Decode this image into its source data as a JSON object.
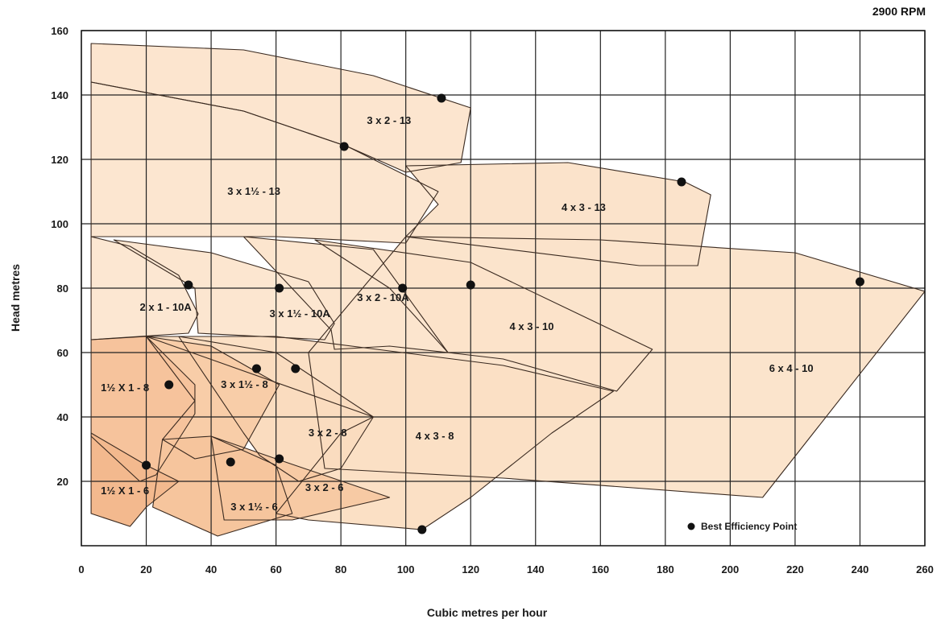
{
  "speed_label": "2900 RPM",
  "chart_data": {
    "type": "area",
    "title": "",
    "xlabel": "Cubic metres per hour",
    "ylabel": "Head metres",
    "xlim": [
      0,
      260
    ],
    "ylim": [
      0,
      160
    ],
    "xticks": [
      0,
      20,
      40,
      60,
      80,
      100,
      120,
      140,
      160,
      180,
      200,
      220,
      240,
      260
    ],
    "yticks": [
      20,
      40,
      60,
      80,
      100,
      120,
      140,
      160
    ],
    "grid": true,
    "legend": {
      "label": "Best Efficiency Point",
      "position": "bottom-right"
    },
    "zones": [
      {
        "name": "6 x 4 - 10",
        "label_at": [
          212,
          54
        ],
        "fill": "#fbe4cc",
        "polygon": [
          [
            100,
            96
          ],
          [
            160,
            95
          ],
          [
            220,
            91
          ],
          [
            260,
            79
          ],
          [
            210,
            15
          ],
          [
            130,
            21
          ],
          [
            75,
            24
          ],
          [
            70,
            60
          ],
          [
            100,
            96
          ]
        ],
        "bep": [
          240,
          82
        ]
      },
      {
        "name": "4 x 3 - 13",
        "label_at": [
          148,
          104
        ],
        "fill": "#fbe3cb",
        "polygon": [
          [
            100,
            118
          ],
          [
            150,
            119
          ],
          [
            186,
            113
          ],
          [
            194,
            109
          ],
          [
            190,
            87
          ],
          [
            172,
            87
          ],
          [
            100,
            96
          ],
          [
            110,
            106
          ],
          [
            100,
            118
          ]
        ],
        "bep": [
          185,
          113
        ]
      },
      {
        "name": "3 x 2 - 13",
        "label_at": [
          88,
          131
        ],
        "fill": "#fce5cf",
        "polygon": [
          [
            3,
            156
          ],
          [
            50,
            154
          ],
          [
            90,
            146
          ],
          [
            120,
            136
          ],
          [
            117,
            119
          ],
          [
            100,
            116
          ],
          [
            82,
            124
          ],
          [
            50,
            135
          ],
          [
            3,
            144
          ]
        ],
        "bep": [
          111,
          139
        ]
      },
      {
        "name": "3 x 1½ - 13",
        "label_at": [
          45,
          109
        ],
        "fill": "#fce6d0",
        "polygon": [
          [
            3,
            144
          ],
          [
            50,
            135
          ],
          [
            82,
            124
          ],
          [
            110,
            110
          ],
          [
            100,
            94
          ],
          [
            60,
            96
          ],
          [
            3,
            96
          ]
        ],
        "bep": [
          81,
          124
        ]
      },
      {
        "name": "4 x 3 - 10",
        "label_at": [
          132,
          67
        ],
        "fill": "#fce3ca",
        "polygon": [
          [
            72,
            95
          ],
          [
            120,
            88
          ],
          [
            176,
            61
          ],
          [
            165,
            48
          ],
          [
            130,
            58
          ],
          [
            113,
            60
          ],
          [
            95,
            80
          ],
          [
            72,
            95
          ]
        ],
        "bep": [
          120,
          81
        ]
      },
      {
        "name": "3 x 2 - 10A",
        "label_at": [
          85,
          76
        ],
        "fill": "#fce5ce",
        "polygon": [
          [
            50,
            96
          ],
          [
            90,
            92
          ],
          [
            113,
            60
          ],
          [
            95,
            62
          ],
          [
            78,
            61
          ],
          [
            77,
            67
          ],
          [
            50,
            96
          ]
        ],
        "bep": [
          99,
          80
        ]
      },
      {
        "name": "3 x 1½ - 10A",
        "label_at": [
          58,
          71
        ],
        "fill": "#fce6d0",
        "polygon": [
          [
            10,
            95
          ],
          [
            40,
            91
          ],
          [
            70,
            82
          ],
          [
            78,
            69
          ],
          [
            75,
            64
          ],
          [
            36,
            66
          ],
          [
            35,
            80
          ],
          [
            10,
            95
          ]
        ],
        "bep": [
          61,
          80
        ]
      },
      {
        "name": "2 x 1 - 10A",
        "label_at": [
          18,
          73
        ],
        "fill": "#fce7d2",
        "polygon": [
          [
            3,
            96
          ],
          [
            15,
            93
          ],
          [
            30,
            84
          ],
          [
            36,
            72
          ],
          [
            33,
            66
          ],
          [
            3,
            64
          ]
        ],
        "bep": [
          33,
          81
        ]
      },
      {
        "name": "4 x 3 - 8",
        "label_at": [
          103,
          33
        ],
        "fill": "#fbe0c5",
        "polygon": [
          [
            20,
            65
          ],
          [
            60,
            65
          ],
          [
            130,
            56
          ],
          [
            164,
            48
          ],
          [
            145,
            35
          ],
          [
            120,
            15
          ],
          [
            105,
            5
          ],
          [
            70,
            8
          ],
          [
            60,
            10
          ],
          [
            80,
            35
          ],
          [
            90,
            40
          ],
          [
            20,
            65
          ]
        ],
        "bep": [
          105,
          5
        ]
      },
      {
        "name": "3 x 2 - 8",
        "label_at": [
          70,
          34
        ],
        "fill": "#fadcbf",
        "polygon": [
          [
            30,
            65
          ],
          [
            60,
            60
          ],
          [
            90,
            40
          ],
          [
            80,
            24
          ],
          [
            67,
            20
          ],
          [
            55,
            28
          ],
          [
            50,
            35
          ],
          [
            30,
            65
          ]
        ],
        "bep": [
          66,
          55
        ]
      },
      {
        "name": "3 x 1½ - 8",
        "label_at": [
          43,
          49
        ],
        "fill": "#f8cda8",
        "polygon": [
          [
            20,
            65
          ],
          [
            40,
            62
          ],
          [
            61,
            50
          ],
          [
            50,
            30
          ],
          [
            35,
            27
          ],
          [
            25,
            33
          ],
          [
            35,
            45
          ],
          [
            20,
            65
          ]
        ],
        "bep": [
          54,
          55
        ]
      },
      {
        "name": "1½ X 1 - 8",
        "label_at": [
          6,
          48
        ],
        "fill": "#f6c39c",
        "polygon": [
          [
            3,
            64
          ],
          [
            20,
            65
          ],
          [
            35,
            50
          ],
          [
            35,
            41
          ],
          [
            23,
            22
          ],
          [
            18,
            20
          ],
          [
            3,
            34
          ]
        ],
        "bep": [
          27,
          50
        ]
      },
      {
        "name": "3 x 2 - 6",
        "label_at": [
          69,
          17
        ],
        "fill": "#f7caa4",
        "polygon": [
          [
            40,
            34
          ],
          [
            60,
            27
          ],
          [
            95,
            15
          ],
          [
            65,
            8
          ],
          [
            44,
            8
          ],
          [
            40,
            34
          ]
        ],
        "bep": [
          61,
          27
        ]
      },
      {
        "name": "3 x 1½ - 6",
        "label_at": [
          46,
          11
        ],
        "fill": "#f6c59d",
        "polygon": [
          [
            25,
            33
          ],
          [
            40,
            34
          ],
          [
            60,
            25
          ],
          [
            65,
            10
          ],
          [
            42,
            3
          ],
          [
            22,
            12
          ],
          [
            25,
            33
          ]
        ],
        "bep": [
          46,
          26
        ]
      },
      {
        "name": "1½ X 1 - 6",
        "label_at": [
          6,
          16
        ],
        "fill": "#f3b98e",
        "polygon": [
          [
            3,
            35
          ],
          [
            20,
            25
          ],
          [
            30,
            20
          ],
          [
            20,
            12
          ],
          [
            15,
            6
          ],
          [
            3,
            10
          ]
        ],
        "bep": [
          20,
          25
        ]
      }
    ]
  }
}
